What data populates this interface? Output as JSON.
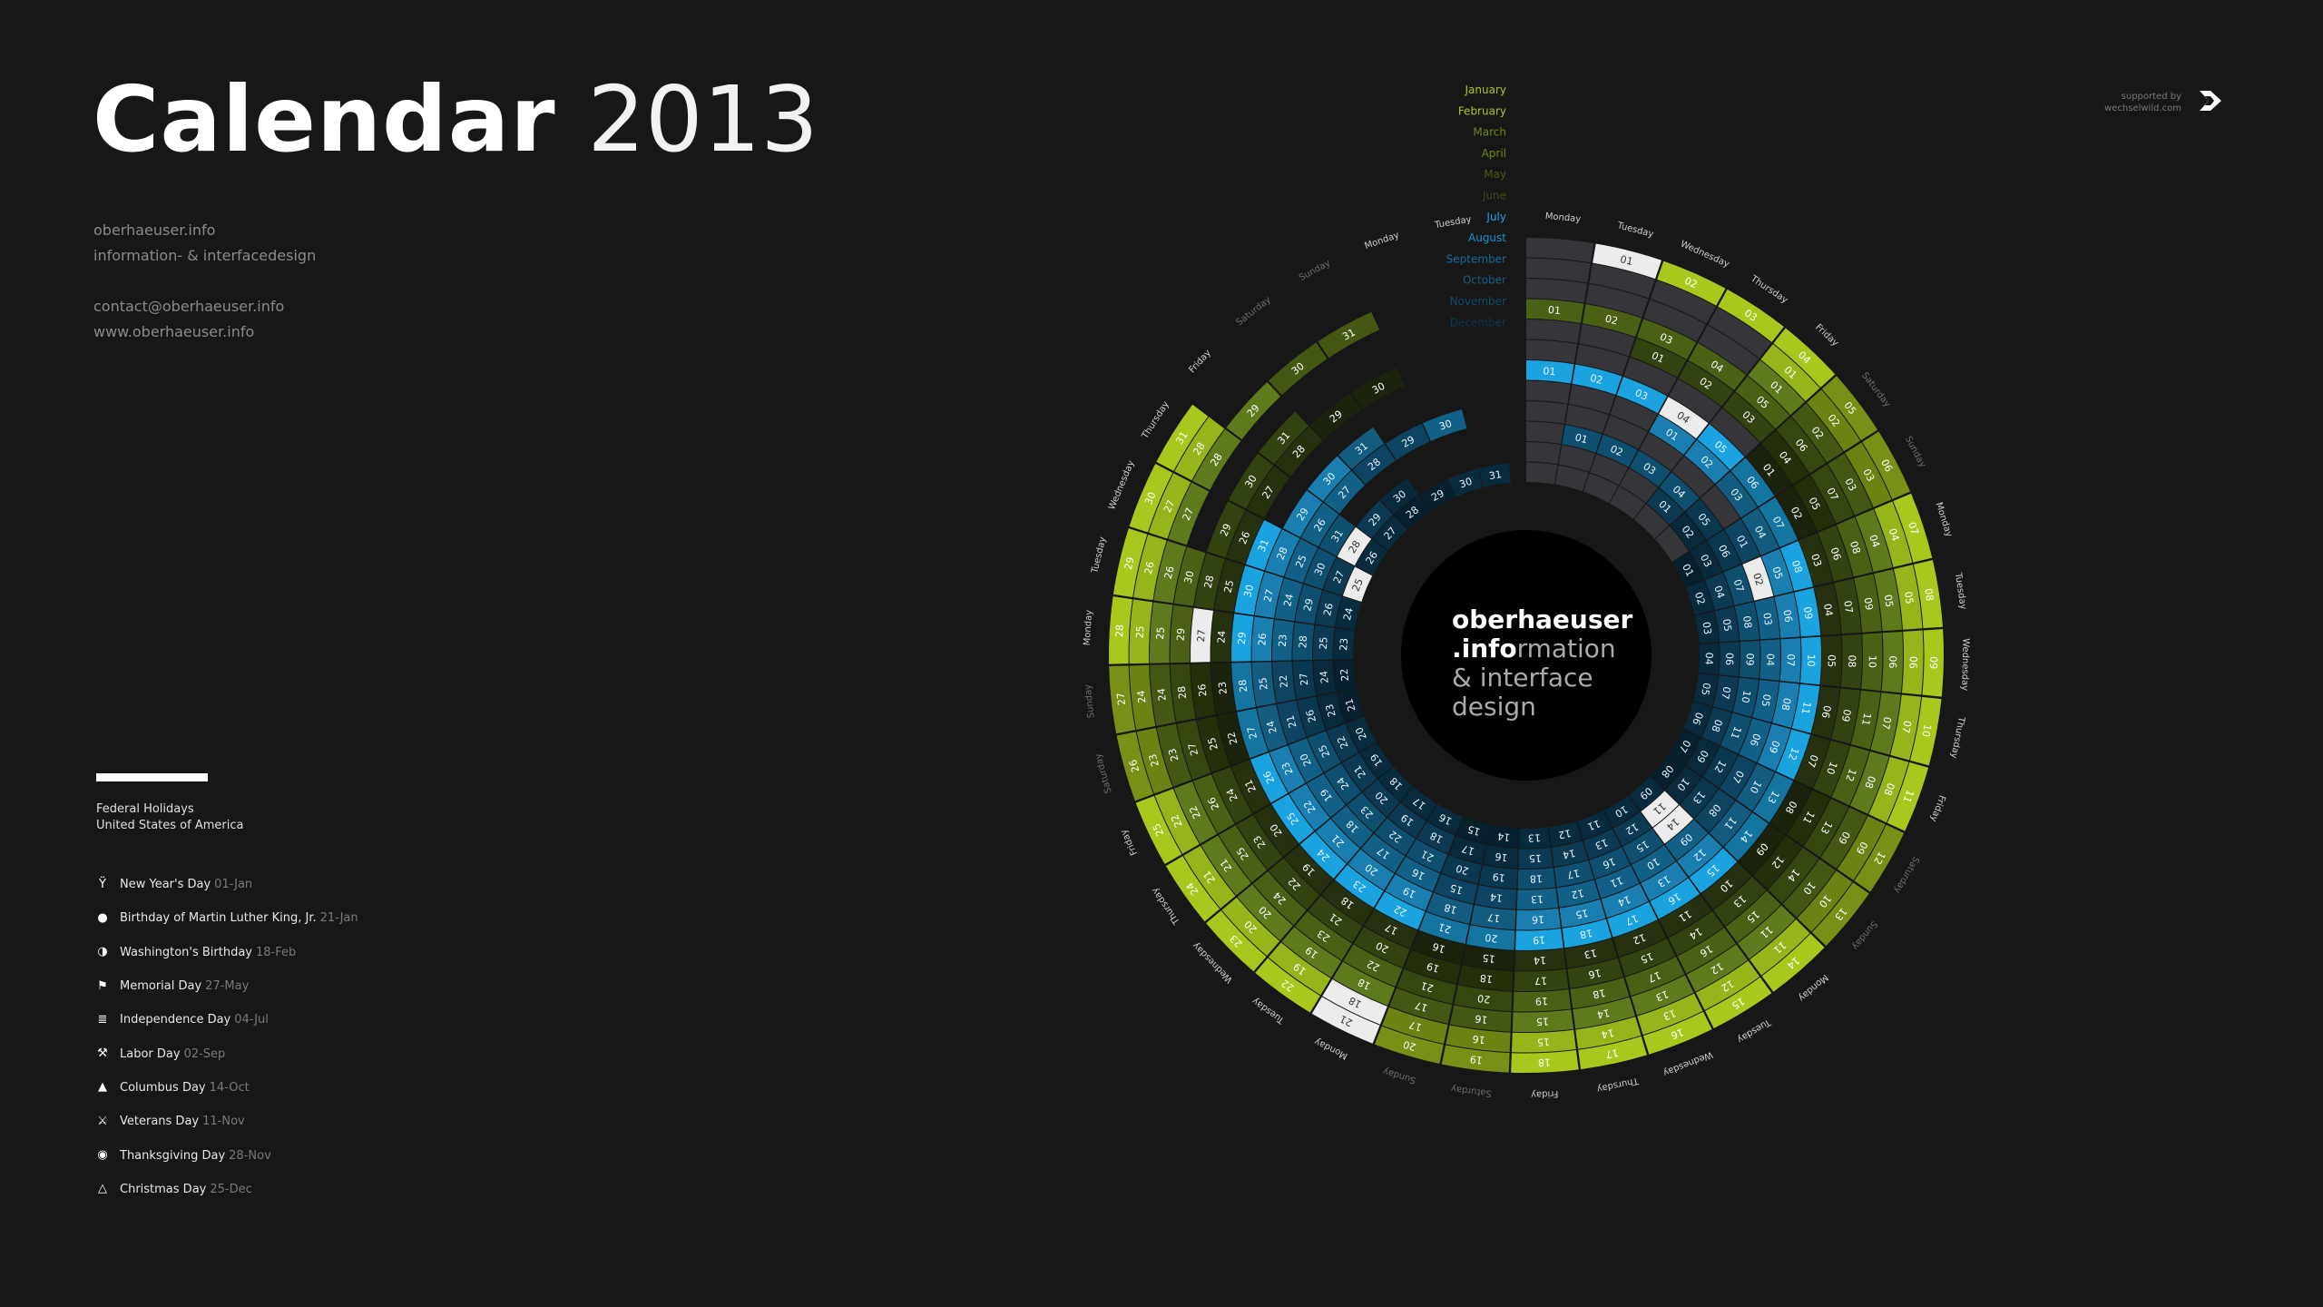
{
  "header": {
    "title_bold": "Calendar",
    "title_year": "2013"
  },
  "info": {
    "lines": [
      "oberhaeuser.info",
      "information- & interfacedesign",
      "",
      "contact@oberhaeuser.info",
      "www.oberhaeuser.info"
    ]
  },
  "legend": {
    "heading": [
      "Federal Holidays",
      "United States of America"
    ],
    "holidays": [
      {
        "name": "New Year's Day",
        "date": "01-Jan",
        "icon": "cocktail-glass-icon",
        "glyph": "Ÿ"
      },
      {
        "name": "Birthday of Martin Luther King, Jr.",
        "date": "21-Jan",
        "icon": "portrait-icon",
        "glyph": "●"
      },
      {
        "name": "Washington's Birthday",
        "date": "18-Feb",
        "icon": "silhouette-icon",
        "glyph": "◑"
      },
      {
        "name": "Memorial Day",
        "date": "27-May",
        "icon": "flag-icon",
        "glyph": "⚑"
      },
      {
        "name": "Independence Day",
        "date": "04-Jul",
        "icon": "us-flag-icon",
        "glyph": "≣"
      },
      {
        "name": "Labor Day",
        "date": "02-Sep",
        "icon": "hammer-icon",
        "glyph": "⚒"
      },
      {
        "name": "Columbus Day",
        "date": "14-Oct",
        "icon": "ship-icon",
        "glyph": "▲"
      },
      {
        "name": "Veterans Day",
        "date": "11-Nov",
        "icon": "rifle-icon",
        "glyph": "⚔"
      },
      {
        "name": "Thanksgiving Day",
        "date": "28-Nov",
        "icon": "turkey-icon",
        "glyph": "◉"
      },
      {
        "name": "Christmas Day",
        "date": "25-Dec",
        "icon": "tree-icon",
        "glyph": "△"
      }
    ]
  },
  "support": {
    "line1": "supported by",
    "line2": "wechselwild.com",
    "logo_icon": "wechselwild-logo-icon"
  },
  "center": {
    "line1": "oberhaeuser",
    "line2a": ".info",
    "line2b": "rmation",
    "line3": "& interface",
    "line4": "design"
  },
  "calendar": {
    "year": 2013,
    "months": [
      {
        "name": "January",
        "days": 31,
        "color": "#a8c81e",
        "label_color": "#a8c81e"
      },
      {
        "name": "February",
        "days": 28,
        "color": "#96b51a",
        "label_color": "#a8c81e"
      },
      {
        "name": "March",
        "days": 31,
        "color": "#5f7a1c",
        "label_color": "#6d8a1a"
      },
      {
        "name": "April",
        "days": 30,
        "color": "#4a6115",
        "label_color": "#6d8a1a"
      },
      {
        "name": "May",
        "days": 31,
        "color": "#33430f",
        "label_color": "#4a5c18"
      },
      {
        "name": "June",
        "days": 30,
        "color": "#263110",
        "label_color": "#3d4c14"
      },
      {
        "name": "July",
        "days": 31,
        "color": "#1aa3de",
        "label_color": "#1aa3de"
      },
      {
        "name": "August",
        "days": 31,
        "color": "#1a7fb0",
        "label_color": "#1a8fc8"
      },
      {
        "name": "September",
        "days": 30,
        "color": "#125f87",
        "label_color": "#146c98"
      },
      {
        "name": "October",
        "days": 31,
        "color": "#0e4e6e",
        "label_color": "#125f87"
      },
      {
        "name": "November",
        "days": 30,
        "color": "#0b3a52",
        "label_color": "#0e4e6e"
      },
      {
        "name": "December",
        "days": 31,
        "color": "#082b3d",
        "label_color": "#0b3a52"
      }
    ],
    "weekdays": [
      "Monday",
      "Tuesday",
      "Wednesday",
      "Thursday",
      "Friday",
      "Saturday",
      "Sunday"
    ],
    "weekday_short": [
      "Mo",
      "Tu",
      "We",
      "Th",
      "Fr",
      "Sa",
      "Su"
    ],
    "holiday_days": [
      [
        1,
        1
      ],
      [
        1,
        21
      ],
      [
        2,
        18
      ],
      [
        5,
        27
      ],
      [
        7,
        4
      ],
      [
        9,
        2
      ],
      [
        10,
        14
      ],
      [
        11,
        11
      ],
      [
        11,
        28
      ],
      [
        12,
        25
      ]
    ],
    "empty_color": "#35353a",
    "holiday_color": "#ececec"
  }
}
